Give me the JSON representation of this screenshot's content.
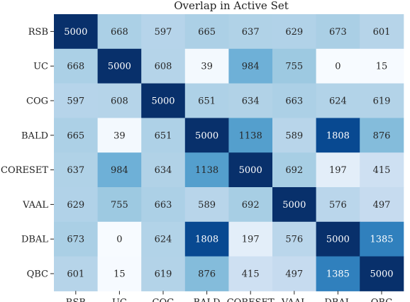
{
  "chart_data": {
    "type": "heatmap",
    "title": "Overlap in Active Set",
    "xlabel": "",
    "ylabel": "",
    "x_categories": [
      "RSB",
      "UC",
      "COG",
      "BALD",
      "CORESET",
      "VAAL",
      "DBAL",
      "QBC"
    ],
    "y_categories": [
      "RSB",
      "UC",
      "COG",
      "BALD",
      "CORESET",
      "VAAL",
      "DBAL",
      "QBC"
    ],
    "values": [
      [
        5000,
        668,
        597,
        665,
        637,
        629,
        673,
        601
      ],
      [
        668,
        5000,
        608,
        39,
        984,
        755,
        0,
        15
      ],
      [
        597,
        608,
        5000,
        651,
        634,
        663,
        624,
        619
      ],
      [
        665,
        39,
        651,
        5000,
        1138,
        589,
        1808,
        876
      ],
      [
        637,
        984,
        634,
        1138,
        5000,
        692,
        197,
        415
      ],
      [
        629,
        755,
        663,
        589,
        692,
        5000,
        576,
        497
      ],
      [
        673,
        0,
        624,
        1808,
        197,
        576,
        5000,
        1385
      ],
      [
        601,
        15,
        619,
        876,
        415,
        497,
        1385,
        5000
      ]
    ],
    "color_range": [
      0,
      2000
    ],
    "colormap": "Blues",
    "colors": {
      "low": "#f7fbff",
      "high": "#08306b"
    },
    "annotations": true,
    "grid": false
  }
}
